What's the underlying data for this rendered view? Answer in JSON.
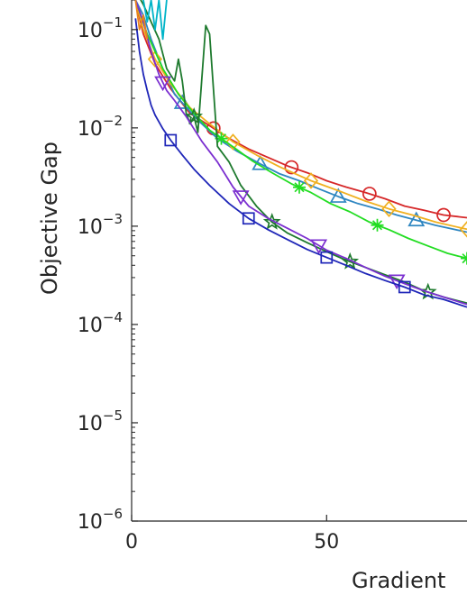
{
  "chart_data": {
    "type": "line",
    "xlabel": "Gradient",
    "ylabel": "Objective Gap",
    "y_scale": "log",
    "xlim": [
      0,
      86
    ],
    "ylim": [
      1e-06,
      0.2
    ],
    "x_ticks": [
      {
        "value": 0,
        "label": "0"
      },
      {
        "value": 50,
        "label": "50"
      }
    ],
    "y_ticks": [
      {
        "value": 0.1,
        "base": "10",
        "exp": "−1"
      },
      {
        "value": 0.01,
        "base": "10",
        "exp": "−2"
      },
      {
        "value": 0.001,
        "base": "10",
        "exp": "−3"
      },
      {
        "value": 0.0001,
        "base": "10",
        "exp": "−4"
      },
      {
        "value": 1e-05,
        "base": "10",
        "exp": "−5"
      },
      {
        "value": 1e-06,
        "base": "10",
        "exp": "−6"
      }
    ],
    "grid": false,
    "series": [
      {
        "color": "#D62728",
        "marker": "circle",
        "x": [
          1,
          3,
          6,
          10,
          15,
          20,
          25,
          30,
          35,
          40,
          45,
          50,
          55,
          60,
          65,
          70,
          75,
          80,
          86
        ],
        "y": [
          0.2,
          0.09,
          0.045,
          0.025,
          0.014,
          0.0105,
          0.0078,
          0.0061,
          0.005,
          0.0041,
          0.0035,
          0.0029,
          0.0025,
          0.0022,
          0.0019,
          0.0016,
          0.00145,
          0.0013,
          0.00122
        ],
        "marker_x": [
          21,
          41,
          61,
          80
        ]
      },
      {
        "color": "#2E86C1",
        "marker": "triangle-up",
        "x": [
          1,
          3,
          5,
          8,
          11,
          13,
          17,
          22,
          27,
          33,
          38,
          43,
          48,
          53,
          58,
          63,
          68,
          73,
          78,
          86
        ],
        "y": [
          0.2,
          0.14,
          0.08,
          0.04,
          0.022,
          0.018,
          0.012,
          0.0078,
          0.0058,
          0.0043,
          0.0034,
          0.0029,
          0.0024,
          0.002,
          0.0017,
          0.0015,
          0.0013,
          0.00115,
          0.00102,
          0.00087
        ],
        "marker_x": [
          13,
          33,
          53,
          73
        ]
      },
      {
        "color": "#F0B020",
        "marker": "diamond",
        "x": [
          1,
          3,
          6,
          10,
          15,
          20,
          26,
          32,
          38,
          46,
          53,
          60,
          66,
          72,
          78,
          86
        ],
        "y": [
          0.2,
          0.1,
          0.05,
          0.028,
          0.016,
          0.011,
          0.0072,
          0.0053,
          0.004,
          0.0029,
          0.0023,
          0.0018,
          0.0015,
          0.0013,
          0.0011,
          0.00093
        ],
        "marker_x": [
          6,
          26,
          46,
          66,
          86
        ]
      },
      {
        "color": "#22DD22",
        "marker": "asterisk",
        "x": [
          1,
          4,
          8,
          12,
          16,
          20,
          23,
          27,
          31,
          36,
          41,
          46,
          51,
          56,
          61,
          66,
          71,
          76,
          81,
          86
        ],
        "y": [
          0.2,
          0.09,
          0.04,
          0.022,
          0.014,
          0.0095,
          0.0078,
          0.006,
          0.0046,
          0.0035,
          0.0027,
          0.0022,
          0.0017,
          0.0014,
          0.0011,
          0.00092,
          0.00075,
          0.00063,
          0.00053,
          0.00047
        ],
        "marker_x": [
          23,
          43,
          63,
          86
        ]
      },
      {
        "color": "#1E7A2E",
        "marker": "pentagram",
        "x": [
          1,
          3,
          5,
          7,
          9,
          11,
          12,
          13,
          14,
          15,
          16,
          17,
          18,
          19,
          20,
          22,
          25,
          28,
          32,
          36,
          40,
          45,
          50,
          55,
          60,
          65,
          70,
          75,
          80,
          86
        ],
        "y": [
          0.25,
          0.18,
          0.12,
          0.08,
          0.04,
          0.03,
          0.05,
          0.03,
          0.014,
          0.011,
          0.013,
          0.009,
          0.032,
          0.11,
          0.09,
          0.0065,
          0.0045,
          0.0026,
          0.0016,
          0.0011,
          0.00085,
          0.00068,
          0.00055,
          0.00045,
          0.00038,
          0.00032,
          0.00027,
          0.00022,
          0.00019,
          0.000165
        ],
        "marker_x": [
          16,
          36,
          56,
          76
        ]
      },
      {
        "color": "#7B2FD0",
        "marker": "triangle-down",
        "x": [
          1,
          3,
          5,
          7,
          9,
          11,
          14,
          18,
          22,
          26,
          30,
          35,
          40,
          45,
          50,
          55,
          60,
          65,
          70,
          75,
          80,
          86
        ],
        "y": [
          0.2,
          0.12,
          0.06,
          0.035,
          0.024,
          0.019,
          0.013,
          0.0073,
          0.0045,
          0.0025,
          0.0016,
          0.0012,
          0.00095,
          0.00075,
          0.00057,
          0.00047,
          0.00038,
          0.00031,
          0.00026,
          0.00022,
          0.00019,
          0.00016
        ],
        "marker_x": [
          8,
          28,
          48,
          68
        ]
      },
      {
        "color": "#1F26B8",
        "marker": "square",
        "x": [
          1,
          2,
          3,
          4,
          5,
          6,
          8,
          10,
          13,
          16,
          20,
          25,
          30,
          35,
          40,
          45,
          50,
          55,
          60,
          65,
          70,
          75,
          80,
          86
        ],
        "y": [
          0.13,
          0.06,
          0.035,
          0.024,
          0.017,
          0.0135,
          0.0098,
          0.0075,
          0.0053,
          0.0038,
          0.0026,
          0.0017,
          0.0012,
          0.00092,
          0.00073,
          0.00058,
          0.00048,
          0.0004,
          0.00033,
          0.00028,
          0.00024,
          0.0002,
          0.00018,
          0.00015
        ],
        "marker_x": [
          10,
          30,
          50,
          70
        ]
      },
      {
        "color": "#00B4C8",
        "marker": "none",
        "x": [
          3,
          4,
          5,
          6,
          7,
          8,
          9
        ],
        "y": [
          0.2,
          0.12,
          0.2,
          0.1,
          0.2,
          0.08,
          0.2
        ],
        "marker_x": []
      },
      {
        "color": "#E8841C",
        "marker": "none",
        "x": [
          1,
          2,
          3,
          4
        ],
        "y": [
          0.2,
          0.1,
          0.14,
          0.08
        ],
        "marker_x": []
      }
    ]
  }
}
